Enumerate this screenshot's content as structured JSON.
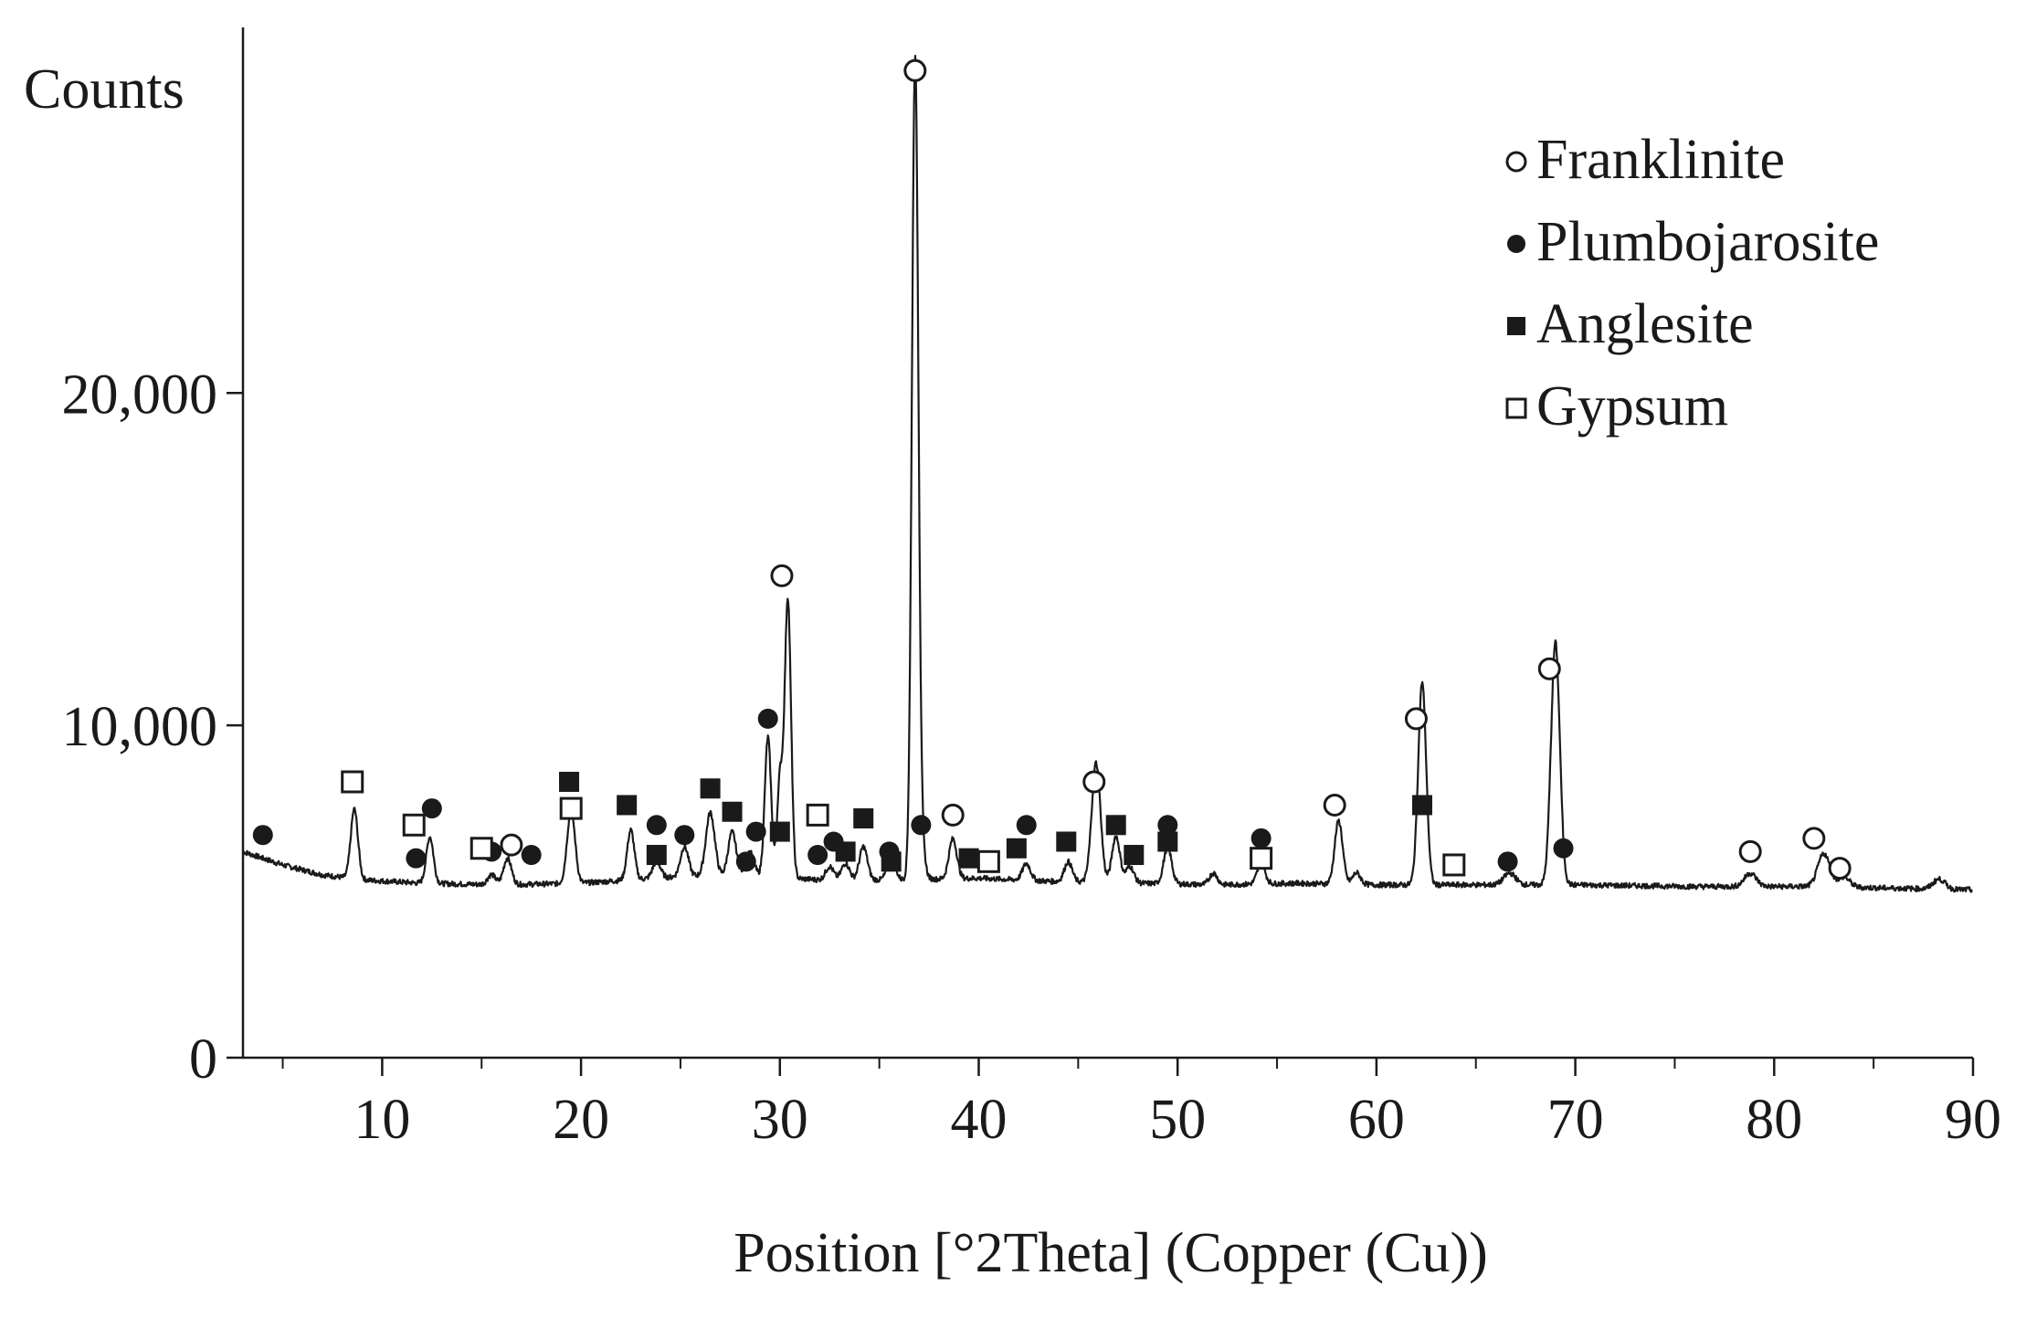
{
  "chart_data": {
    "type": "line",
    "title": "",
    "ylabel": "Counts",
    "xlabel": "Position [°2Theta] (Copper (Cu))",
    "xlim": [
      3,
      90
    ],
    "ylim": [
      0,
      31000
    ],
    "grid": false,
    "x_ticks": [
      10,
      20,
      30,
      40,
      50,
      60,
      70,
      80,
      90
    ],
    "x_tick_labels": [
      "10",
      "20",
      "30",
      "40",
      "50",
      "60",
      "70",
      "80",
      "90"
    ],
    "x_minor_ticks": [
      5,
      15,
      25,
      35,
      45,
      55,
      65,
      75,
      85
    ],
    "y_ticks": [
      0,
      10000,
      20000
    ],
    "y_tick_labels": [
      "0",
      "10,000",
      "20,000"
    ],
    "legend": {
      "placement": "top-right",
      "entries": [
        {
          "label": "Franklinite",
          "marker": "open-circle"
        },
        {
          "label": "Plumbojarosite",
          "marker": "filled-circle"
        },
        {
          "label": "Anglesite",
          "marker": "filled-square"
        },
        {
          "label": "Gypsum",
          "marker": "open-square"
        }
      ]
    },
    "colors": {
      "line": "#1a1a1a",
      "marker": "#1a1a1a",
      "background": "#ffffff"
    },
    "series": [
      {
        "baseline": [
          [
            3,
            6200
          ],
          [
            5,
            5800
          ],
          [
            7,
            5500
          ],
          [
            9,
            5350
          ],
          [
            12,
            5250
          ],
          [
            16,
            5200
          ],
          [
            20,
            5250
          ],
          [
            25,
            5450
          ],
          [
            28,
            5500
          ],
          [
            32,
            5350
          ],
          [
            36,
            5350
          ],
          [
            40,
            5400
          ],
          [
            44,
            5300
          ],
          [
            48,
            5250
          ],
          [
            52,
            5200
          ],
          [
            56,
            5250
          ],
          [
            60,
            5200
          ],
          [
            64,
            5200
          ],
          [
            70,
            5200
          ],
          [
            76,
            5150
          ],
          [
            82,
            5150
          ],
          [
            86,
            5100
          ],
          [
            90,
            5050
          ]
        ],
        "peaks": [
          [
            8.6,
            2100,
            0.18
          ],
          [
            12.4,
            1400,
            0.18
          ],
          [
            15.5,
            300,
            0.2
          ],
          [
            16.3,
            800,
            0.2
          ],
          [
            19.5,
            2200,
            0.2
          ],
          [
            22.5,
            1500,
            0.18
          ],
          [
            23.8,
            500,
            0.2
          ],
          [
            25.2,
            900,
            0.2
          ],
          [
            26.5,
            1900,
            0.22
          ],
          [
            27.6,
            1300,
            0.2
          ],
          [
            28.5,
            700,
            0.2
          ],
          [
            29.4,
            4200,
            0.16
          ],
          [
            30.0,
            2900,
            0.14
          ],
          [
            30.4,
            8400,
            0.16
          ],
          [
            32.5,
            400,
            0.2
          ],
          [
            33.3,
            500,
            0.2
          ],
          [
            34.2,
            1000,
            0.2
          ],
          [
            35.6,
            700,
            0.2
          ],
          [
            36.8,
            24500,
            0.16
          ],
          [
            37.1,
            1000,
            0.18
          ],
          [
            38.7,
            1200,
            0.2
          ],
          [
            42.4,
            500,
            0.2
          ],
          [
            44.5,
            600,
            0.2
          ],
          [
            45.9,
            3600,
            0.22
          ],
          [
            46.9,
            1400,
            0.2
          ],
          [
            47.6,
            500,
            0.2
          ],
          [
            49.5,
            1100,
            0.2
          ],
          [
            51.8,
            350,
            0.2
          ],
          [
            54.2,
            600,
            0.2
          ],
          [
            58.1,
            1900,
            0.2
          ],
          [
            59.0,
            350,
            0.2
          ],
          [
            62.3,
            6100,
            0.2
          ],
          [
            66.7,
            350,
            0.3
          ],
          [
            69.0,
            7300,
            0.22
          ],
          [
            78.8,
            400,
            0.3
          ],
          [
            82.5,
            1000,
            0.3
          ],
          [
            83.5,
            300,
            0.3
          ],
          [
            88.3,
            300,
            0.3
          ]
        ]
      }
    ],
    "markers": [
      {
        "phase": "Franklinite",
        "marker": "open-circle",
        "points": [
          [
            16.5,
            6400
          ],
          [
            30.1,
            14500
          ],
          [
            36.8,
            29700
          ],
          [
            38.7,
            7300
          ],
          [
            45.8,
            8300
          ],
          [
            57.9,
            7600
          ],
          [
            62.0,
            10200
          ],
          [
            68.7,
            11700
          ],
          [
            78.8,
            6200
          ],
          [
            82.0,
            6600
          ],
          [
            83.3,
            5700
          ]
        ]
      },
      {
        "phase": "Plumbojarosite",
        "marker": "filled-circle",
        "points": [
          [
            4.0,
            6700
          ],
          [
            11.7,
            6000
          ],
          [
            12.5,
            7500
          ],
          [
            15.5,
            6200
          ],
          [
            17.5,
            6100
          ],
          [
            23.8,
            7000
          ],
          [
            25.2,
            6700
          ],
          [
            28.3,
            5900
          ],
          [
            28.8,
            6800
          ],
          [
            29.4,
            10200
          ],
          [
            31.9,
            6100
          ],
          [
            32.7,
            6500
          ],
          [
            35.5,
            6200
          ],
          [
            37.1,
            7000
          ],
          [
            42.4,
            7000
          ],
          [
            49.5,
            7000
          ],
          [
            54.2,
            6600
          ],
          [
            66.6,
            5900
          ],
          [
            69.4,
            6300
          ]
        ]
      },
      {
        "phase": "Anglesite",
        "marker": "filled-square",
        "points": [
          [
            19.4,
            8300
          ],
          [
            22.3,
            7600
          ],
          [
            23.8,
            6100
          ],
          [
            26.5,
            8100
          ],
          [
            27.6,
            7400
          ],
          [
            30.0,
            6800
          ],
          [
            33.3,
            6200
          ],
          [
            34.2,
            7200
          ],
          [
            35.6,
            5900
          ],
          [
            39.5,
            6000
          ],
          [
            41.9,
            6300
          ],
          [
            44.4,
            6500
          ],
          [
            46.9,
            7000
          ],
          [
            47.8,
            6100
          ],
          [
            49.5,
            6500
          ],
          [
            62.3,
            7600
          ]
        ]
      },
      {
        "phase": "Gypsum",
        "marker": "open-square",
        "points": [
          [
            8.5,
            8300
          ],
          [
            11.6,
            7000
          ],
          [
            15.0,
            6300
          ],
          [
            19.5,
            7500
          ],
          [
            31.9,
            7300
          ],
          [
            40.5,
            5900
          ],
          [
            54.2,
            6000
          ],
          [
            63.9,
            5800
          ]
        ]
      }
    ]
  }
}
